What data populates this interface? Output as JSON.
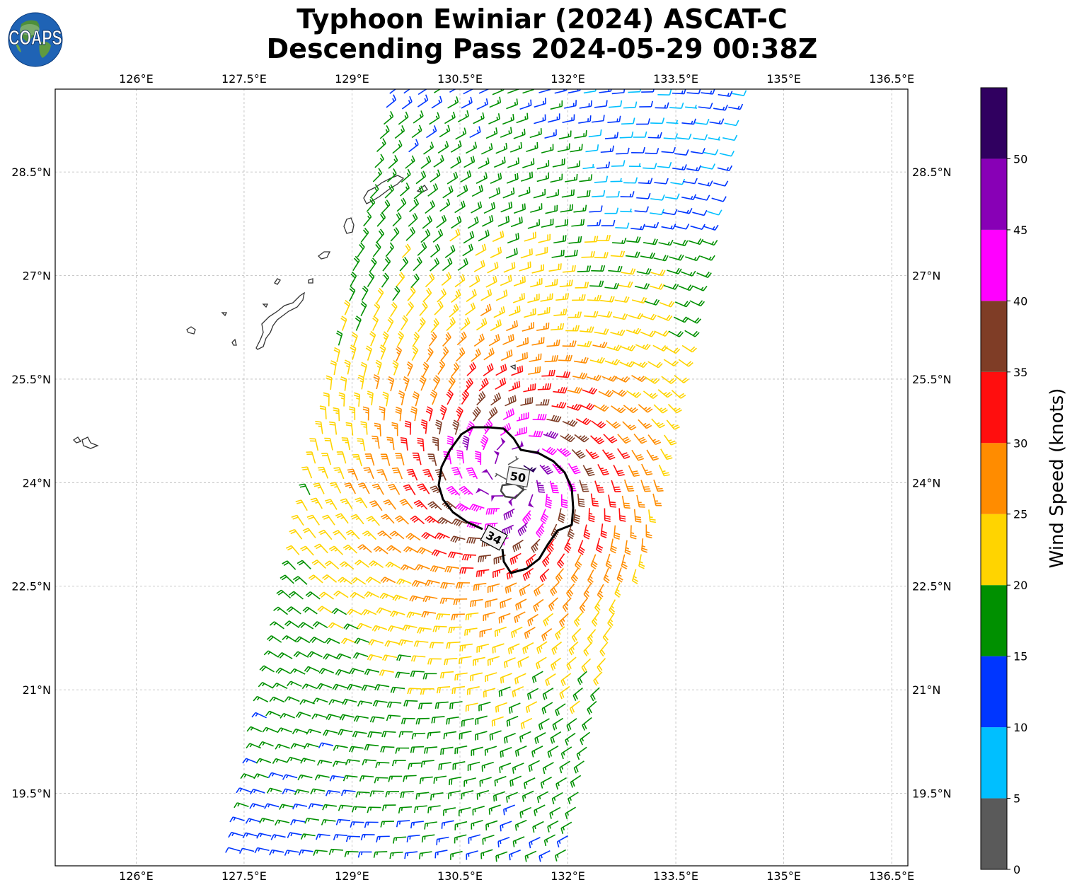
{
  "header": {
    "title_line1": "Typhoon Ewiniar (2024) ASCAT-C",
    "title_line2": "Descending Pass 2024-05-29 00:38Z",
    "logo_text": "COAPS"
  },
  "map": {
    "lon_range": [
      124.875,
      136.725
    ],
    "lat_range": [
      18.45,
      29.7
    ],
    "lon_ticks": [
      "126°E",
      "127.5°E",
      "129°E",
      "130.5°E",
      "132°E",
      "133.5°E",
      "135°E",
      "136.5°E"
    ],
    "lon_tick_values": [
      126,
      127.5,
      129,
      130.5,
      132,
      133.5,
      135,
      136.5
    ],
    "lat_ticks": [
      "28.5°N",
      "27°N",
      "25.5°N",
      "24°N",
      "22.5°N",
      "21°N",
      "19.5°N"
    ],
    "lat_tick_values": [
      28.5,
      27,
      25.5,
      24,
      22.5,
      21,
      19.5
    ],
    "gridlines": true,
    "storm_center": {
      "lon": 131.2,
      "lat": 24.1
    },
    "contours": [
      {
        "label": "34",
        "line_color": "#000000"
      },
      {
        "label": "50",
        "line_color": "#444444"
      }
    ]
  },
  "colorbar": {
    "title": "Wind Speed (knots)",
    "ticks": [
      "0",
      "5",
      "10",
      "15",
      "20",
      "25",
      "30",
      "35",
      "40",
      "45",
      "50"
    ],
    "bins": [
      {
        "min": 0,
        "max": 5,
        "color": "#5a5a5a"
      },
      {
        "min": 5,
        "max": 10,
        "color": "#00bfff"
      },
      {
        "min": 10,
        "max": 15,
        "color": "#0036ff"
      },
      {
        "min": 15,
        "max": 20,
        "color": "#009000"
      },
      {
        "min": 20,
        "max": 25,
        "color": "#ffd400"
      },
      {
        "min": 25,
        "max": 30,
        "color": "#ff8c00"
      },
      {
        "min": 30,
        "max": 35,
        "color": "#ff0e0e"
      },
      {
        "min": 35,
        "max": 40,
        "color": "#7f3d26"
      },
      {
        "min": 40,
        "max": 45,
        "color": "#ff00ff"
      },
      {
        "min": 45,
        "max": 50,
        "color": "#8800b6"
      },
      {
        "min": 50,
        "max": 55,
        "color": "#300060"
      }
    ]
  }
}
